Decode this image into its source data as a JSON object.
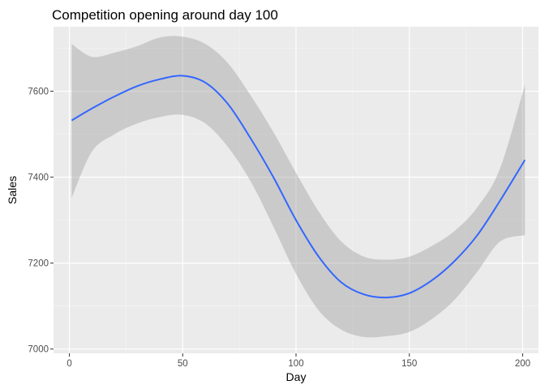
{
  "chart_data": {
    "type": "line",
    "title": "Competition opening around day 100",
    "xlabel": "Day",
    "ylabel": "Sales",
    "xlim": [
      -7,
      207
    ],
    "ylim": [
      6990,
      7750
    ],
    "x_ticks": [
      0,
      50,
      100,
      150,
      200
    ],
    "x_tick_labels": [
      "0",
      "50",
      "100",
      "150",
      "200"
    ],
    "y_ticks": [
      7000,
      7200,
      7400,
      7600
    ],
    "y_tick_labels": [
      "7000",
      "7200",
      "7400",
      "7600"
    ],
    "x_minor_ticks": [
      25,
      75,
      125,
      175
    ],
    "y_minor_ticks": [
      7100,
      7300,
      7500,
      7700
    ],
    "grid": true,
    "legend": "none",
    "colors": {
      "panel_background": "#ebebeb",
      "grid_major": "#ffffff",
      "grid_minor": "#f5f5f5",
      "line": "#3366ff",
      "ribbon": "#999999",
      "ribbon_opacity": 0.4,
      "tick_mark": "#333333"
    },
    "series": [
      {
        "x": [
          1,
          10,
          20,
          30,
          40,
          50,
          60,
          70,
          80,
          90,
          100,
          110,
          120,
          130,
          140,
          150,
          160,
          170,
          180,
          190,
          201
        ],
        "y": [
          7532,
          7560,
          7588,
          7612,
          7628,
          7636,
          7620,
          7570,
          7490,
          7400,
          7300,
          7215,
          7155,
          7127,
          7120,
          7130,
          7160,
          7205,
          7265,
          7345,
          7440
        ],
        "ymin": [
          7352,
          7460,
          7500,
          7525,
          7540,
          7545,
          7525,
          7470,
          7390,
          7285,
          7175,
          7090,
          7045,
          7028,
          7030,
          7040,
          7070,
          7115,
          7180,
          7250,
          7265
        ],
        "ymax": [
          7710,
          7680,
          7690,
          7705,
          7725,
          7727,
          7710,
          7665,
          7590,
          7505,
          7410,
          7320,
          7250,
          7215,
          7208,
          7215,
          7240,
          7275,
          7330,
          7420,
          7615
        ]
      }
    ]
  }
}
